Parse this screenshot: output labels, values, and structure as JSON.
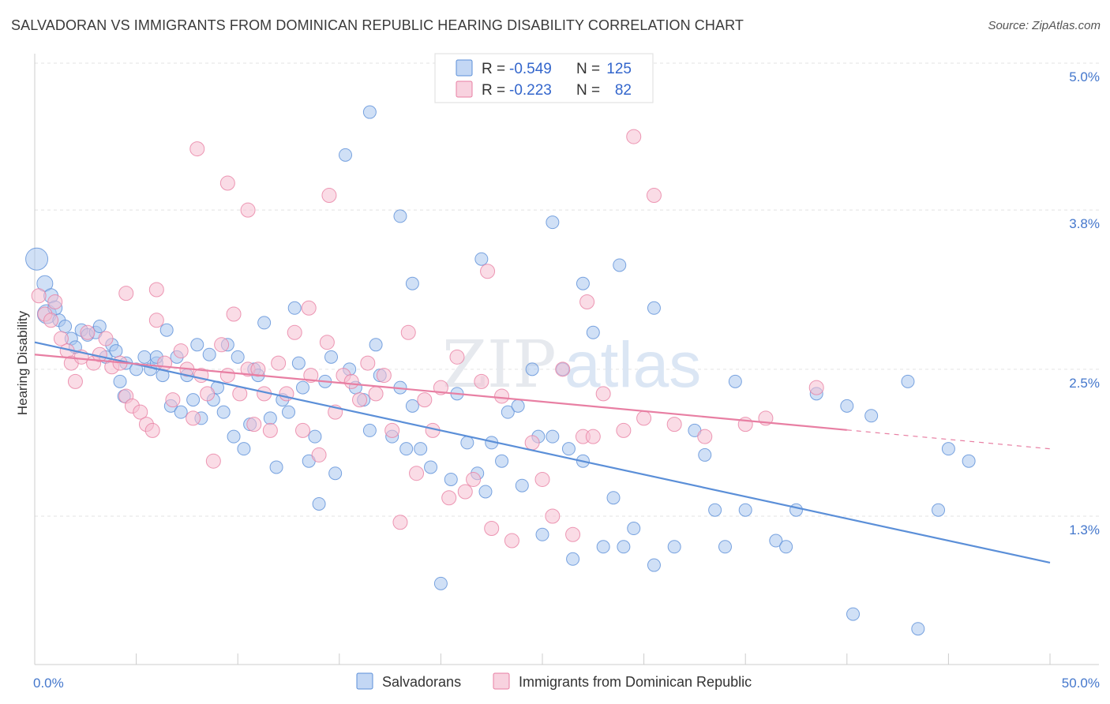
{
  "title": "SALVADORAN VS IMMIGRANTS FROM DOMINICAN REPUBLIC HEARING DISABILITY CORRELATION CHART",
  "source": "Source: ZipAtlas.com",
  "watermark": {
    "part1": "ZIP",
    "part2": "atlas"
  },
  "chart_data": {
    "type": "scatter",
    "ylabel": "Hearing Disability",
    "xlim": [
      0,
      50
    ],
    "ylim": [
      0,
      5.2
    ],
    "x_tick_labels": {
      "min": "0.0%",
      "max": "50.0%"
    },
    "y_ticks": [
      {
        "value": 1.3,
        "label": "1.3%"
      },
      {
        "value": 2.5,
        "label": "2.5%"
      },
      {
        "value": 3.8,
        "label": "3.8%"
      },
      {
        "value": 5.0,
        "label": "5.0%"
      }
    ],
    "grid": true,
    "legend_top": {
      "r_label": "R =",
      "n_label": "N =",
      "rows": [
        {
          "r": "-0.549",
          "n": "125",
          "color": "#5b8fd8"
        },
        {
          "r": "-0.223",
          "n": "82",
          "color": "#e87fa3"
        }
      ]
    },
    "series": [
      {
        "name": "Salvadorans",
        "color": "#5b8fd8",
        "fill": "#a9c6ef",
        "trend": {
          "x0": 0,
          "y0": 2.72,
          "x1": 50,
          "y1": 0.92,
          "solid_until": 50
        },
        "points": [
          [
            0.1,
            3.4,
            14
          ],
          [
            0.5,
            3.2,
            10
          ],
          [
            0.8,
            3.1,
            9
          ],
          [
            0.6,
            2.95,
            12
          ],
          [
            1.0,
            3.0,
            9
          ],
          [
            1.2,
            2.9,
            8
          ],
          [
            1.5,
            2.85,
            8
          ],
          [
            1.8,
            2.75,
            8
          ],
          [
            2.0,
            2.68,
            8
          ],
          [
            2.3,
            2.82,
            8
          ],
          [
            2.6,
            2.78,
            8
          ],
          [
            3.0,
            2.8,
            8
          ],
          [
            3.2,
            2.85,
            8
          ],
          [
            3.5,
            2.6,
            8
          ],
          [
            3.8,
            2.7,
            8
          ],
          [
            4.0,
            2.65,
            8
          ],
          [
            4.2,
            2.4,
            8
          ],
          [
            4.4,
            2.28,
            8
          ],
          [
            4.5,
            2.55,
            8
          ],
          [
            5.0,
            2.5,
            8
          ],
          [
            5.4,
            2.6,
            8
          ],
          [
            5.7,
            2.5,
            8
          ],
          [
            6.0,
            2.55,
            8
          ],
          [
            6.3,
            2.45,
            8
          ],
          [
            6.0,
            2.6,
            8
          ],
          [
            6.5,
            2.82,
            8
          ],
          [
            6.7,
            2.2,
            8
          ],
          [
            7.0,
            2.6,
            8
          ],
          [
            7.2,
            2.15,
            8
          ],
          [
            7.5,
            2.45,
            8
          ],
          [
            7.8,
            2.25,
            8
          ],
          [
            8.0,
            2.7,
            8
          ],
          [
            8.2,
            2.1,
            8
          ],
          [
            8.6,
            2.62,
            8
          ],
          [
            8.8,
            2.25,
            8
          ],
          [
            9.0,
            2.35,
            8
          ],
          [
            9.3,
            2.15,
            8
          ],
          [
            9.5,
            2.7,
            8
          ],
          [
            9.8,
            1.95,
            8
          ],
          [
            10.0,
            2.6,
            8
          ],
          [
            10.3,
            1.85,
            8
          ],
          [
            10.6,
            2.05,
            8
          ],
          [
            10.8,
            2.5,
            8
          ],
          [
            11.0,
            2.45,
            8
          ],
          [
            11.3,
            2.88,
            8
          ],
          [
            11.6,
            2.1,
            8
          ],
          [
            11.9,
            1.7,
            8
          ],
          [
            12.2,
            2.25,
            8
          ],
          [
            12.5,
            2.15,
            8
          ],
          [
            12.8,
            3.0,
            8
          ],
          [
            13.0,
            2.55,
            8
          ],
          [
            13.2,
            2.35,
            8
          ],
          [
            13.5,
            1.75,
            8
          ],
          [
            13.8,
            1.95,
            8
          ],
          [
            14.0,
            1.4,
            8
          ],
          [
            14.3,
            2.4,
            8
          ],
          [
            14.6,
            2.6,
            8
          ],
          [
            14.8,
            1.65,
            8
          ],
          [
            15.5,
            2.5,
            8
          ],
          [
            15.8,
            2.35,
            8
          ],
          [
            16.2,
            2.25,
            8
          ],
          [
            16.5,
            2.0,
            8
          ],
          [
            16.8,
            2.7,
            8
          ],
          [
            17.0,
            2.45,
            8
          ],
          [
            17.6,
            1.95,
            8
          ],
          [
            18.0,
            2.35,
            8
          ],
          [
            18.3,
            1.85,
            8
          ],
          [
            18.6,
            2.2,
            8
          ],
          [
            19.0,
            1.85,
            8
          ],
          [
            19.5,
            1.7,
            8
          ],
          [
            20.0,
            0.75,
            8
          ],
          [
            20.5,
            1.6,
            8
          ],
          [
            20.8,
            2.3,
            8
          ],
          [
            21.3,
            1.9,
            8
          ],
          [
            21.8,
            1.65,
            8
          ],
          [
            22.2,
            1.5,
            8
          ],
          [
            22.5,
            1.9,
            8
          ],
          [
            23.0,
            1.75,
            8
          ],
          [
            23.3,
            2.15,
            8
          ],
          [
            23.8,
            2.2,
            8
          ],
          [
            24.0,
            1.55,
            8
          ],
          [
            24.5,
            2.5,
            8
          ],
          [
            24.8,
            1.95,
            8
          ],
          [
            25.0,
            1.15,
            8
          ],
          [
            25.5,
            1.95,
            8
          ],
          [
            26.0,
            2.5,
            8
          ],
          [
            26.3,
            1.85,
            8
          ],
          [
            26.5,
            0.95,
            8
          ],
          [
            27.0,
            1.75,
            8
          ],
          [
            27.5,
            2.8,
            8
          ],
          [
            28.0,
            1.05,
            8
          ],
          [
            28.5,
            1.45,
            8
          ],
          [
            28.8,
            3.35,
            8
          ],
          [
            29.0,
            1.05,
            8
          ],
          [
            29.5,
            1.2,
            8
          ],
          [
            30.5,
            0.9,
            8
          ],
          [
            31.5,
            1.05,
            8
          ],
          [
            32.5,
            2.0,
            8
          ],
          [
            33.0,
            1.8,
            8
          ],
          [
            33.5,
            1.35,
            8
          ],
          [
            34.0,
            1.05,
            8
          ],
          [
            34.5,
            2.4,
            8
          ],
          [
            35.0,
            1.35,
            8
          ],
          [
            36.5,
            1.1,
            8
          ],
          [
            37.0,
            1.05,
            8
          ],
          [
            37.5,
            1.35,
            8
          ],
          [
            38.5,
            2.3,
            8
          ],
          [
            40.0,
            2.2,
            8
          ],
          [
            40.3,
            0.5,
            8
          ],
          [
            41.2,
            2.12,
            8
          ],
          [
            43.0,
            2.4,
            8
          ],
          [
            43.5,
            0.38,
            8
          ],
          [
            44.5,
            1.35,
            8
          ],
          [
            45.0,
            1.85,
            8
          ],
          [
            46.0,
            1.75,
            8
          ],
          [
            16.5,
            4.6,
            8
          ],
          [
            15.3,
            4.25,
            8
          ],
          [
            18.0,
            3.75,
            8
          ],
          [
            18.6,
            3.2,
            8
          ],
          [
            22.0,
            3.4,
            8
          ],
          [
            25.5,
            3.7,
            8
          ],
          [
            27.0,
            3.2,
            8
          ],
          [
            30.5,
            3.0,
            8
          ]
        ]
      },
      {
        "name": "Immigrants from Dominican Republic",
        "color": "#e87fa3",
        "fill": "#f5bfd1",
        "trend": {
          "x0": 0,
          "y0": 2.62,
          "x1": 50,
          "y1": 1.85,
          "solid_until": 40
        },
        "points": [
          [
            0.2,
            3.1,
            9
          ],
          [
            0.5,
            2.95,
            9
          ],
          [
            0.8,
            2.9,
            9
          ],
          [
            1.0,
            3.05,
            9
          ],
          [
            1.3,
            2.75,
            9
          ],
          [
            1.6,
            2.65,
            9
          ],
          [
            1.8,
            2.55,
            9
          ],
          [
            2.0,
            2.4,
            9
          ],
          [
            2.3,
            2.6,
            9
          ],
          [
            2.6,
            2.8,
            9
          ],
          [
            2.9,
            2.55,
            9
          ],
          [
            3.2,
            2.62,
            9
          ],
          [
            3.5,
            2.75,
            9
          ],
          [
            3.8,
            2.52,
            9
          ],
          [
            4.2,
            2.55,
            9
          ],
          [
            4.5,
            2.28,
            9
          ],
          [
            4.8,
            2.2,
            9
          ],
          [
            5.2,
            2.15,
            9
          ],
          [
            5.5,
            2.05,
            9
          ],
          [
            5.8,
            2.0,
            9
          ],
          [
            6.0,
            2.9,
            9
          ],
          [
            6.4,
            2.55,
            9
          ],
          [
            6.8,
            2.25,
            9
          ],
          [
            7.2,
            2.65,
            9
          ],
          [
            7.5,
            2.5,
            9
          ],
          [
            7.8,
            2.1,
            9
          ],
          [
            8.2,
            2.45,
            9
          ],
          [
            8.5,
            2.3,
            9
          ],
          [
            8.8,
            1.75,
            9
          ],
          [
            9.2,
            2.7,
            9
          ],
          [
            9.5,
            2.45,
            9
          ],
          [
            9.8,
            2.95,
            9
          ],
          [
            10.1,
            2.3,
            9
          ],
          [
            10.5,
            2.5,
            9
          ],
          [
            10.8,
            2.05,
            9
          ],
          [
            11.0,
            2.5,
            9
          ],
          [
            11.3,
            2.3,
            9
          ],
          [
            11.6,
            2.0,
            9
          ],
          [
            12.0,
            2.55,
            9
          ],
          [
            12.4,
            2.3,
            9
          ],
          [
            12.8,
            2.8,
            9
          ],
          [
            13.2,
            2.0,
            9
          ],
          [
            13.6,
            2.45,
            9
          ],
          [
            14.0,
            1.8,
            9
          ],
          [
            14.4,
            2.72,
            9
          ],
          [
            14.8,
            2.15,
            9
          ],
          [
            15.2,
            2.45,
            9
          ],
          [
            15.6,
            2.4,
            9
          ],
          [
            16.0,
            2.25,
            9
          ],
          [
            16.4,
            2.55,
            9
          ],
          [
            16.8,
            2.3,
            9
          ],
          [
            17.2,
            2.45,
            9
          ],
          [
            17.6,
            2.0,
            9
          ],
          [
            18.0,
            1.25,
            9
          ],
          [
            18.4,
            2.8,
            9
          ],
          [
            18.8,
            1.65,
            9
          ],
          [
            19.2,
            2.25,
            9
          ],
          [
            19.6,
            2.0,
            9
          ],
          [
            20.0,
            2.35,
            9
          ],
          [
            20.4,
            1.45,
            9
          ],
          [
            20.8,
            2.6,
            9
          ],
          [
            21.2,
            1.5,
            9
          ],
          [
            21.6,
            1.6,
            9
          ],
          [
            22.0,
            2.4,
            9
          ],
          [
            22.5,
            1.2,
            9
          ],
          [
            23.0,
            2.28,
            9
          ],
          [
            23.5,
            1.1,
            9
          ],
          [
            24.5,
            1.9,
            9
          ],
          [
            25.0,
            1.6,
            9
          ],
          [
            25.5,
            1.3,
            9
          ],
          [
            26.0,
            2.5,
            9
          ],
          [
            26.5,
            1.15,
            9
          ],
          [
            27.0,
            1.95,
            9
          ],
          [
            27.5,
            1.95,
            9
          ],
          [
            28.0,
            2.3,
            9
          ],
          [
            29.0,
            2.0,
            9
          ],
          [
            30.0,
            2.1,
            9
          ],
          [
            31.5,
            2.05,
            9
          ],
          [
            33.0,
            1.95,
            9
          ],
          [
            35.0,
            2.05,
            9
          ],
          [
            36.0,
            2.1,
            9
          ],
          [
            38.5,
            2.35,
            9
          ],
          [
            8.0,
            4.3,
            9
          ],
          [
            9.5,
            4.02,
            9
          ],
          [
            10.5,
            3.8,
            9
          ],
          [
            14.5,
            3.92,
            9
          ],
          [
            22.3,
            3.3,
            9
          ],
          [
            27.2,
            3.05,
            9
          ],
          [
            4.5,
            3.12,
            9
          ],
          [
            6.0,
            3.15,
            9
          ],
          [
            13.5,
            3.0,
            9
          ],
          [
            29.5,
            4.4,
            9
          ],
          [
            30.5,
            3.92,
            9
          ]
        ]
      }
    ]
  },
  "bottom_legend": [
    {
      "label": "Salvadorans",
      "color": "#5b8fd8",
      "fill": "#a9c6ef"
    },
    {
      "label": "Immigrants from Dominican Republic",
      "color": "#e87fa3",
      "fill": "#f5bfd1"
    }
  ]
}
